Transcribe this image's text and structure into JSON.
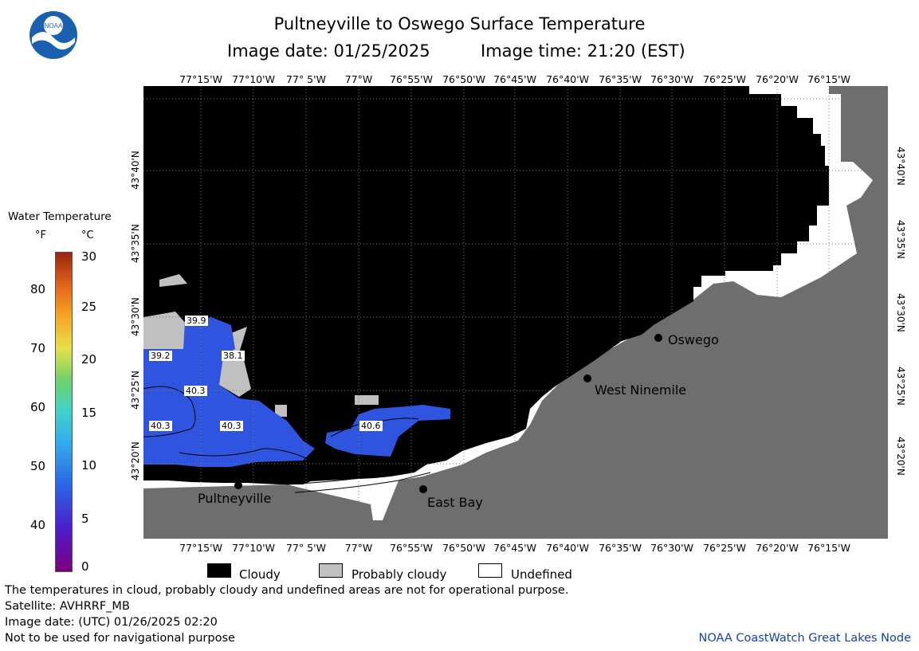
{
  "header": {
    "title": "Pultneyville to Oswego Surface Temperature",
    "image_date": "Image date: 01/25/2025",
    "image_time": "Image time: 21:20 (EST)"
  },
  "logo": {
    "text": "NOAA",
    "colors": {
      "outer": "#1a5fb0",
      "inner": "#ffffff"
    }
  },
  "longitude_ticks": [
    "77°15'W",
    "77°10'W",
    "77° 5'W",
    "77°W",
    "76°55'W",
    "76°50'W",
    "76°45'W",
    "76°40'W",
    "76°35'W",
    "76°30'W",
    "76°25'W",
    "76°20'W",
    "76°15'W"
  ],
  "latitude_ticks": [
    "43°40'N",
    "43°35'N",
    "43°30'N",
    "43°25'N",
    "43°20'N"
  ],
  "colorbar": {
    "title": "Water Temperature",
    "unit_f": "°F",
    "unit_c": "°C",
    "f_ticks": [
      "80",
      "70",
      "60",
      "50",
      "40"
    ],
    "c_ticks": [
      "30",
      "25",
      "20",
      "15",
      "10",
      "5",
      "0"
    ]
  },
  "places": [
    {
      "name": "Oswego"
    },
    {
      "name": "West Ninemile"
    },
    {
      "name": "East Bay"
    },
    {
      "name": "Pultneyville"
    }
  ],
  "isotherm_labels": [
    "39.9",
    "39.2",
    "38.1",
    "40.3",
    "40.3",
    "40.3",
    "40.6"
  ],
  "legend": {
    "cloudy": "Cloudy",
    "probably_cloudy": "Probably cloudy",
    "undefined": "Undefined"
  },
  "footer": {
    "line1": "The temperatures in cloud, probably cloudy and undefined areas are not for operational purpose.",
    "line2": "Satellite: AVHRRF_MB",
    "line3": "Image date: (UTC) 01/26/2025  02:20",
    "line4": "Not to be used for navigational purpose",
    "credit": "NOAA CoastWatch Great Lakes Node"
  },
  "colors": {
    "cloud": "#000000",
    "probably_cloud": "#c0c0c0",
    "land": "#6e6e6e",
    "water_warm": "#2f55e0",
    "undefined": "#ffffff",
    "credit": "#1a3fb0"
  }
}
